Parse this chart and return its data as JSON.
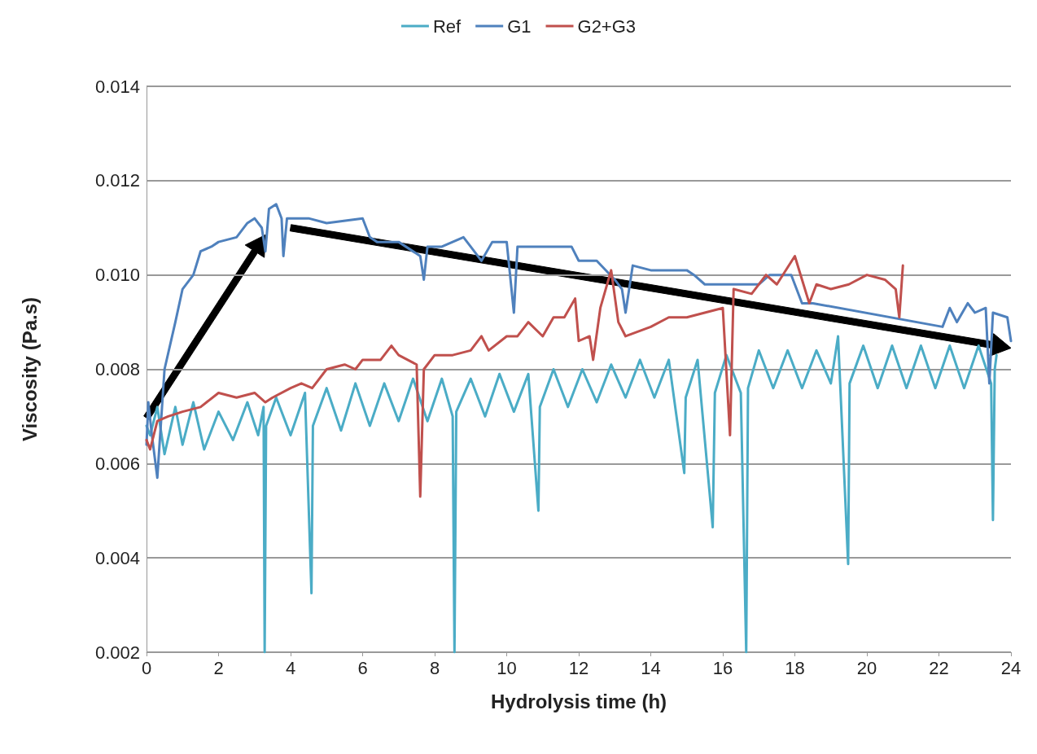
{
  "chart_data": {
    "type": "line",
    "xlabel": "Hydrolysis time (h)",
    "ylabel": "Viscosity (Pa.s)",
    "xlim": [
      0,
      24
    ],
    "xticks": [
      0,
      2,
      4,
      6,
      8,
      10,
      12,
      14,
      16,
      18,
      20,
      22,
      24
    ],
    "ylim": [
      0.002,
      0.014
    ],
    "yticks": [
      0.002,
      0.004,
      0.006,
      0.008,
      {
        "value": 0.01,
        "label": "0.010"
      },
      0.012,
      0.014
    ],
    "grid": "y",
    "legend": "top",
    "marker": "none",
    "line_style": "solid",
    "series": [
      {
        "name": "Ref",
        "color": "#4bacc6",
        "x": [
          0,
          0.1,
          0.3,
          0.5,
          0.8,
          1.0,
          1.3,
          1.6,
          2.0,
          2.4,
          2.8,
          3.1,
          3.25,
          3.28,
          3.32,
          3.6,
          4.0,
          4.4,
          4.58,
          4.62,
          5.0,
          5.4,
          5.8,
          6.2,
          6.6,
          7.0,
          7.4,
          7.8,
          8.2,
          8.5,
          8.55,
          8.6,
          9.0,
          9.4,
          9.8,
          10.2,
          10.6,
          10.88,
          10.92,
          11.3,
          11.7,
          12.1,
          12.5,
          12.9,
          13.3,
          13.7,
          14.1,
          14.5,
          14.93,
          14.97,
          15.3,
          15.72,
          15.78,
          16.1,
          16.5,
          16.65,
          16.7,
          17.0,
          17.4,
          17.8,
          18.2,
          18.6,
          19.0,
          19.2,
          19.48,
          19.52,
          19.9,
          20.3,
          20.7,
          21.1,
          21.5,
          21.9,
          22.3,
          22.7,
          23.1,
          23.45,
          23.5,
          23.55,
          23.6
        ],
        "values": [
          0.0068,
          0.0066,
          0.0072,
          0.0062,
          0.0072,
          0.0064,
          0.0073,
          0.0063,
          0.0071,
          0.0065,
          0.0073,
          0.0066,
          0.0072,
          0.002,
          0.0068,
          0.0074,
          0.0066,
          0.0075,
          0.00325,
          0.0068,
          0.0076,
          0.0067,
          0.0077,
          0.0068,
          0.0077,
          0.0069,
          0.0078,
          0.0069,
          0.0078,
          0.007,
          0.002,
          0.0071,
          0.0078,
          0.007,
          0.0079,
          0.0071,
          0.0079,
          0.005,
          0.0072,
          0.008,
          0.0072,
          0.008,
          0.0073,
          0.0081,
          0.0074,
          0.0082,
          0.0074,
          0.0082,
          0.0058,
          0.0074,
          0.0082,
          0.00465,
          0.0075,
          0.0083,
          0.0075,
          0.002,
          0.0076,
          0.0084,
          0.0076,
          0.0084,
          0.0076,
          0.0084,
          0.0077,
          0.0087,
          0.00387,
          0.0077,
          0.0085,
          0.0076,
          0.0085,
          0.0076,
          0.0085,
          0.0076,
          0.0085,
          0.0076,
          0.0085,
          0.0077,
          0.0048,
          0.008,
          0.0083
        ]
      },
      {
        "name": "G1",
        "color": "#4f81bd",
        "x": [
          0,
          0.05,
          0.15,
          0.3,
          0.5,
          0.8,
          1.0,
          1.3,
          1.5,
          1.8,
          2.0,
          2.5,
          2.8,
          3.0,
          3.2,
          3.3,
          3.4,
          3.6,
          3.75,
          3.8,
          3.9,
          4.5,
          5.0,
          6.0,
          6.2,
          6.4,
          7.0,
          7.6,
          7.7,
          7.8,
          8.2,
          8.8,
          9.0,
          9.3,
          9.6,
          10.0,
          10.2,
          10.3,
          11.0,
          11.8,
          12.0,
          12.5,
          13.0,
          13.2,
          13.3,
          13.5,
          14.0,
          15.0,
          15.2,
          15.5,
          16.0,
          16.5,
          17.0,
          17.3,
          17.9,
          18.2,
          18.5,
          22.1,
          22.3,
          22.5,
          22.8,
          23.0,
          23.3,
          23.4,
          23.5,
          23.9,
          24.0
        ],
        "values": [
          0.0064,
          0.0073,
          0.0066,
          0.0057,
          0.008,
          0.009,
          0.0097,
          0.01,
          0.0105,
          0.0106,
          0.0107,
          0.0108,
          0.0111,
          0.0112,
          0.011,
          0.0105,
          0.0114,
          0.0115,
          0.0112,
          0.0104,
          0.0112,
          0.0112,
          0.0111,
          0.0112,
          0.0108,
          0.0107,
          0.0107,
          0.0104,
          0.0099,
          0.0106,
          0.0106,
          0.0108,
          0.0106,
          0.0103,
          0.0107,
          0.0107,
          0.0092,
          0.0106,
          0.0106,
          0.0106,
          0.0103,
          0.0103,
          0.0099,
          0.0097,
          0.0092,
          0.0102,
          0.0101,
          0.0101,
          0.01,
          0.0098,
          0.0098,
          0.0098,
          0.0098,
          0.01,
          0.01,
          0.0094,
          0.0094,
          0.0089,
          0.0093,
          0.009,
          0.0094,
          0.0092,
          0.0093,
          0.0077,
          0.0092,
          0.0091,
          0.0086
        ]
      },
      {
        "name": "G2+G3",
        "color": "#c0504d",
        "x": [
          0,
          0.1,
          0.3,
          0.6,
          1.0,
          1.5,
          2.0,
          2.5,
          3.0,
          3.3,
          3.5,
          4.0,
          4.3,
          4.6,
          5.0,
          5.5,
          5.8,
          6.0,
          6.5,
          6.8,
          7.0,
          7.5,
          7.6,
          7.7,
          8.0,
          8.5,
          9.0,
          9.3,
          9.5,
          10.0,
          10.3,
          10.6,
          11.0,
          11.3,
          11.6,
          11.9,
          12.0,
          12.3,
          12.4,
          12.6,
          12.9,
          13.1,
          13.3,
          14.0,
          14.5,
          15.0,
          15.5,
          16.0,
          16.2,
          16.3,
          16.8,
          17.2,
          17.5,
          18.0,
          18.2,
          18.4,
          18.6,
          19.0,
          19.5,
          20.0,
          20.5,
          20.8,
          20.9,
          21.0
        ],
        "values": [
          0.0065,
          0.0063,
          0.0069,
          0.007,
          0.0071,
          0.0072,
          0.0075,
          0.0074,
          0.0075,
          0.0073,
          0.0074,
          0.0076,
          0.0077,
          0.0076,
          0.008,
          0.0081,
          0.008,
          0.0082,
          0.0082,
          0.0085,
          0.0083,
          0.0081,
          0.0053,
          0.008,
          0.0083,
          0.0083,
          0.0084,
          0.0087,
          0.0084,
          0.0087,
          0.0087,
          0.009,
          0.0087,
          0.0091,
          0.0091,
          0.0095,
          0.0086,
          0.0087,
          0.0082,
          0.0093,
          0.0101,
          0.009,
          0.0087,
          0.0089,
          0.0091,
          0.0091,
          0.0092,
          0.0093,
          0.0066,
          0.0097,
          0.0096,
          0.01,
          0.0098,
          0.0104,
          0.0099,
          0.0094,
          0.0098,
          0.0097,
          0.0098,
          0.01,
          0.0099,
          0.0097,
          0.0091,
          0.0102
        ]
      }
    ]
  }
}
